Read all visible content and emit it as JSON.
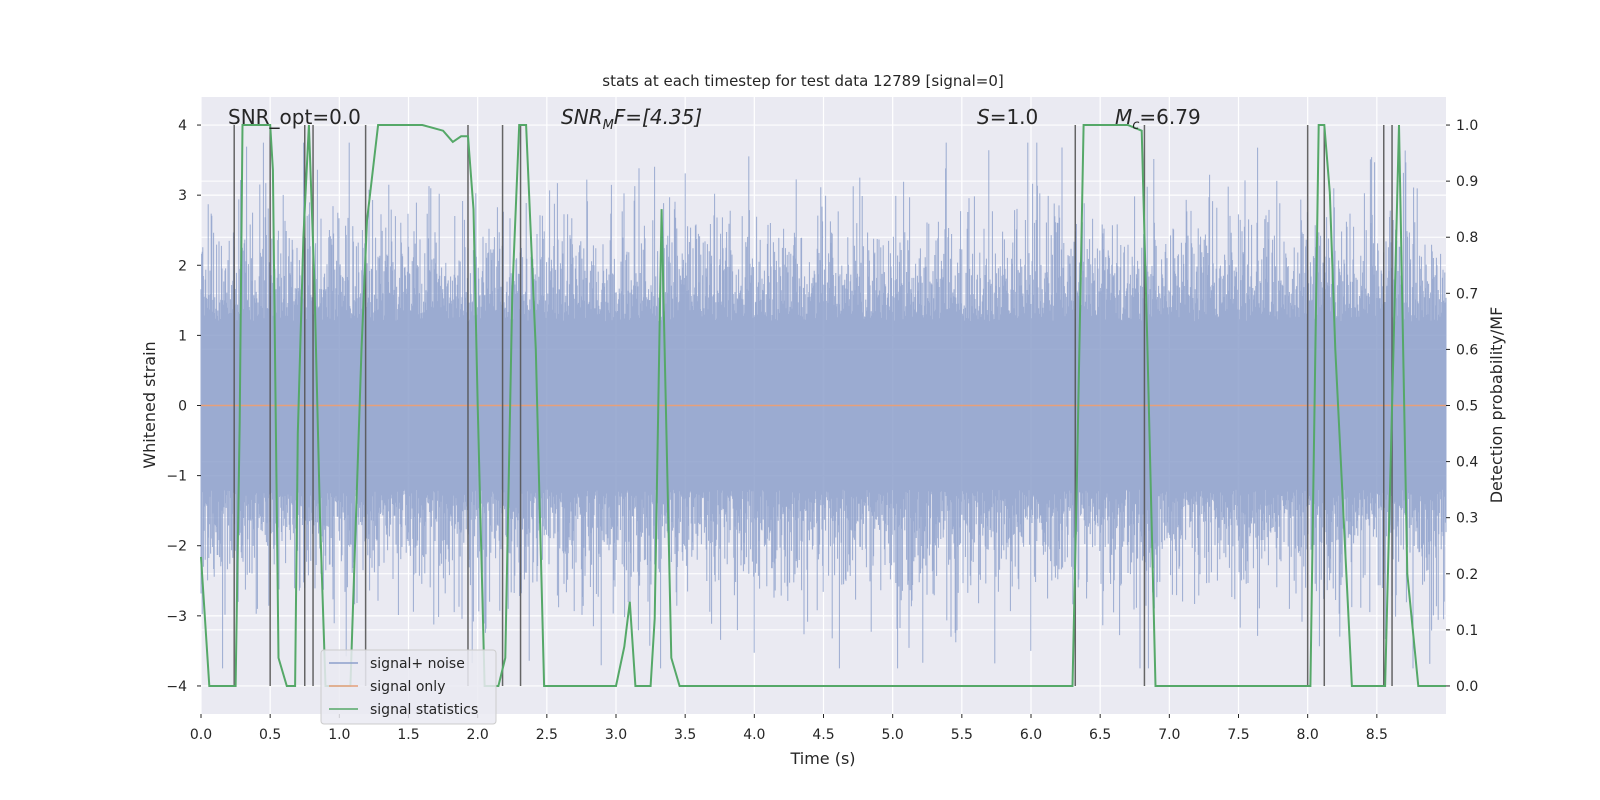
{
  "chart_data": {
    "type": "line",
    "title": "stats at each timestep for test data 12789 [signal=0]",
    "xlabel": "Time (s)",
    "ylabel_left": "Whitened strain",
    "ylabel_right": "Detection probability/MF",
    "xlim": [
      0,
      9
    ],
    "ylim_left": [
      -4.4,
      4.4
    ],
    "ylim_right": [
      -0.05,
      1.05
    ],
    "x_ticks": [
      "0.0",
      "0.5",
      "1.0",
      "1.5",
      "2.0",
      "2.5",
      "3.0",
      "3.5",
      "4.0",
      "4.5",
      "5.0",
      "5.5",
      "6.0",
      "6.5",
      "7.0",
      "7.5",
      "8.0",
      "8.5"
    ],
    "y_ticks_left": [
      "−4",
      "−3",
      "−2",
      "−1",
      "0",
      "1",
      "2",
      "3",
      "4"
    ],
    "y_ticks_right": [
      "0.0",
      "0.1",
      "0.2",
      "0.3",
      "0.4",
      "0.5",
      "0.6",
      "0.7",
      "0.8",
      "0.9",
      "1.0"
    ],
    "grid": true,
    "legend_position": "lower-left",
    "annotations": {
      "snr_opt": "SNR_opt=0.0",
      "snr_mf_label": "SNR",
      "snr_mf_sub": "M",
      "snr_mf_value": "F=[4.35]",
      "s_label": "S",
      "s_value": "=1.0",
      "mc_label": "M",
      "mc_sub": "c",
      "mc_value": "=6.79"
    },
    "series": [
      {
        "name": "signal+ noise",
        "color": "#8da0cb",
        "note": "whitened noise, amplitude mostly within ±2.5, peaks near ±3.7"
      },
      {
        "name": "signal only",
        "color": "#e5a07a",
        "values_constant": 0
      },
      {
        "name": "signal statistics",
        "color": "#55a868",
        "x": [
          0.0,
          0.06,
          0.25,
          0.28,
          0.3,
          0.5,
          0.52,
          0.56,
          0.62,
          0.68,
          0.7,
          0.74,
          0.78,
          0.82,
          0.86,
          0.9,
          0.94,
          1.0,
          1.08,
          1.16,
          1.2,
          1.28,
          1.4,
          1.6,
          1.75,
          1.82,
          1.88,
          1.93,
          1.97,
          2.0,
          2.05,
          2.1,
          2.15,
          2.2,
          2.25,
          2.3,
          2.35,
          2.42,
          2.48,
          2.55,
          2.6,
          2.7,
          2.8,
          2.9,
          3.0,
          3.06,
          3.1,
          3.14,
          3.2,
          3.25,
          3.28,
          3.33,
          3.4,
          3.46,
          3.55,
          4.0,
          4.5,
          5.0,
          5.5,
          6.0,
          6.05,
          6.1,
          6.3,
          6.33,
          6.38,
          6.5,
          6.7,
          6.8,
          6.84,
          6.9,
          7.0,
          7.5,
          7.98,
          8.02,
          8.08,
          8.12,
          8.16,
          8.2,
          8.26,
          8.32,
          8.5,
          8.56,
          8.6,
          8.66,
          8.72,
          8.8,
          9.0
        ],
        "values": [
          0.23,
          0.0,
          0.0,
          0.47,
          1.0,
          1.0,
          0.92,
          0.05,
          0.0,
          0.0,
          0.45,
          0.8,
          1.0,
          0.72,
          0.3,
          0.0,
          0.0,
          0.0,
          0.0,
          0.6,
          0.83,
          1.0,
          1.0,
          1.0,
          0.99,
          0.97,
          0.98,
          0.98,
          0.85,
          0.5,
          0.0,
          0.0,
          0.0,
          0.05,
          0.7,
          1.0,
          1.0,
          0.6,
          0.0,
          0.0,
          0.0,
          0.0,
          0.0,
          0.0,
          0.0,
          0.07,
          0.15,
          0.0,
          0.0,
          0.0,
          0.12,
          0.85,
          0.05,
          0.0,
          0.0,
          0.0,
          0.0,
          0.0,
          0.0,
          0.0,
          0.0,
          0.0,
          0.0,
          0.35,
          1.0,
          1.0,
          1.0,
          0.99,
          0.62,
          0.0,
          0.0,
          0.0,
          0.0,
          0.0,
          1.0,
          1.0,
          0.88,
          0.6,
          0.3,
          0.0,
          0.0,
          0.0,
          0.4,
          1.0,
          0.2,
          0.0,
          0.0
        ]
      }
    ],
    "vertical_markers_s": [
      0.24,
      0.5,
      0.75,
      0.81,
      1.19,
      1.93,
      2.18,
      2.31,
      6.32,
      6.82,
      8.0,
      8.12,
      8.55,
      8.61
    ]
  }
}
